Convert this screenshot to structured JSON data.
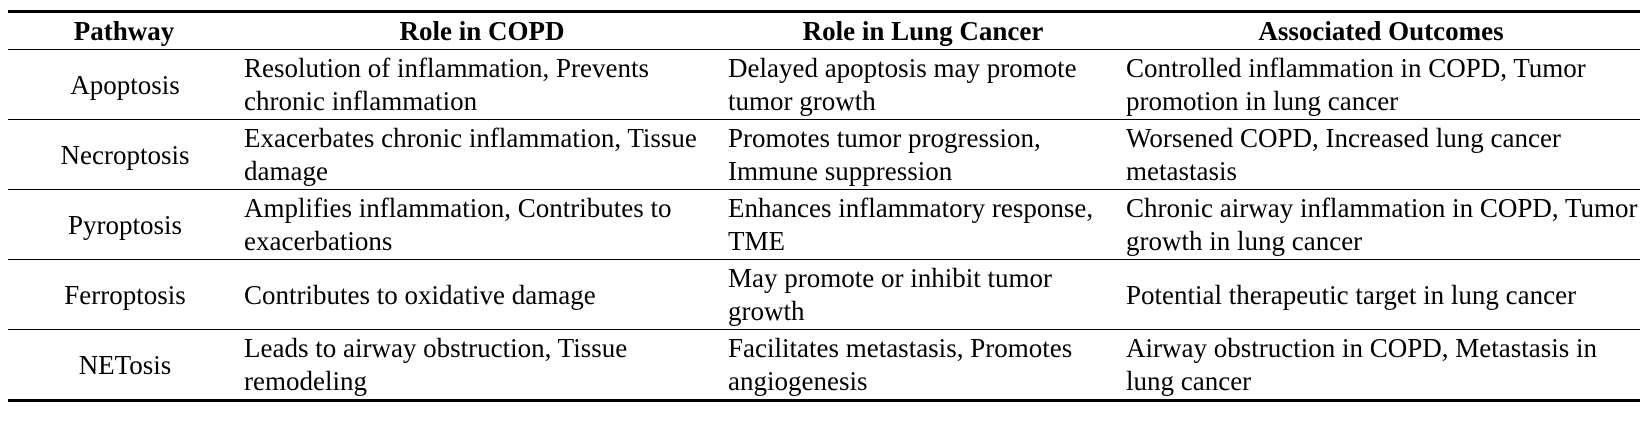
{
  "table": {
    "header": [
      "Pathway",
      "Role in COPD",
      "Role in Lung Cancer",
      "Associated Outcomes"
    ],
    "rows": [
      [
        "Apoptosis",
        "Resolution of inflammation, Prevents chronic inflammation",
        "Delayed apoptosis may promote tumor growth",
        "Controlled inflammation in COPD, Tumor promotion in lung cancer"
      ],
      [
        "Necroptosis",
        "Exacerbates chronic inflammation, Tissue damage",
        "Promotes tumor progression, Immune suppression",
        "Worsened COPD, Increased lung cancer metastasis"
      ],
      [
        "Pyroptosis",
        "Amplifies inflammation, Contributes to exacerbations",
        "Enhances inflammatory response, TME",
        "Chronic airway inflammation in COPD, Tumor growth in lung cancer"
      ],
      [
        "Ferroptosis",
        "Contributes to oxidative damage",
        "May promote or inhibit tumor growth",
        "Potential therapeutic target in lung cancer"
      ],
      [
        "NETosis",
        "Leads to airway obstruction, Tissue remodeling",
        "Facilitates metastasis, Promotes angiogenesis",
        "Airway obstruction in COPD, Metastasis in lung cancer"
      ]
    ]
  }
}
